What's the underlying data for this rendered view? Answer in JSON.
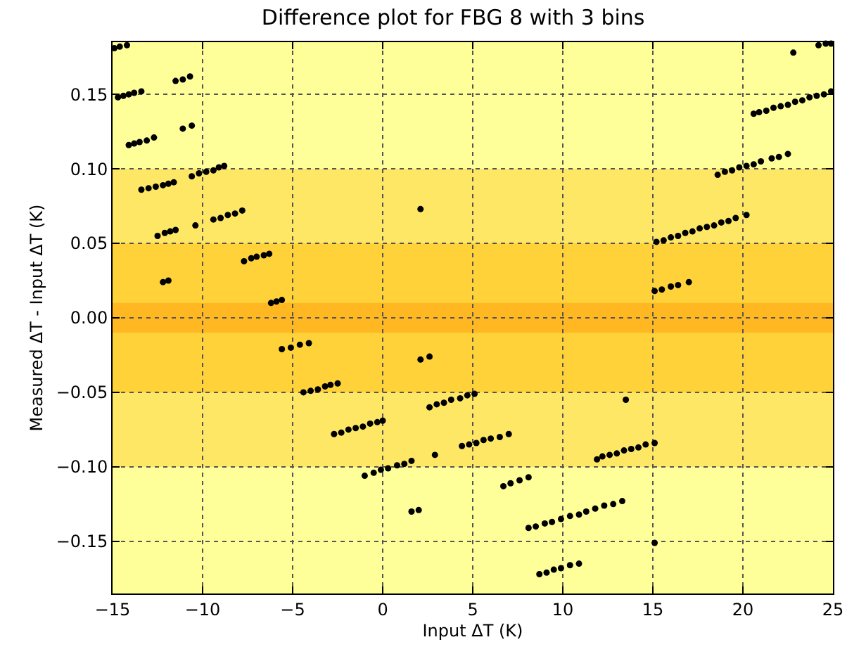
{
  "chart_data": {
    "type": "scatter",
    "title": "Difference plot for FBG 8 with 3 bins",
    "xlabel": "Input ΔT (K)",
    "ylabel": "Measured ΔT - Input ΔT (K)",
    "xlim": [
      -15,
      25
    ],
    "ylim": [
      -0.185,
      0.185
    ],
    "xticks": [
      {
        "value": -15,
        "label": "−15"
      },
      {
        "value": -10,
        "label": "−10"
      },
      {
        "value": -5,
        "label": "−5"
      },
      0,
      5,
      10,
      15,
      20,
      25
    ],
    "yticks": [
      {
        "value": -0.15,
        "label": "−0.15"
      },
      {
        "value": -0.1,
        "label": "−0.10"
      },
      {
        "value": -0.05,
        "label": "−0.05"
      },
      {
        "value": 0,
        "label": "0.00"
      },
      0.05,
      {
        "value": 0.1,
        "label": "0.10"
      },
      0.15
    ],
    "grid": true,
    "marker": "circle",
    "bands": [
      {
        "axis": "y",
        "from": -0.1,
        "to": 0.1,
        "color": "#ffe766"
      },
      {
        "axis": "y",
        "from": -0.05,
        "to": 0.05,
        "color": "#ffd23a"
      },
      {
        "axis": "y",
        "from": -0.01,
        "to": 0.01,
        "color": "#ffb822"
      }
    ],
    "series": [
      {
        "color": "#000000",
        "x": [
          -14.9,
          -14.6,
          -14.2,
          -14.7,
          -14.4,
          -14.1,
          -13.8,
          -13.4,
          -11.5,
          -11.1,
          -10.7,
          -14.1,
          -13.8,
          -13.5,
          -13.1,
          -12.7,
          -11.1,
          -10.6,
          -13.4,
          -13.0,
          -12.6,
          -12.2,
          -11.9,
          -11.6,
          -10.6,
          -10.2,
          -9.8,
          -9.4,
          -9.1,
          -8.8,
          -12.5,
          -12.1,
          -11.8,
          -11.5,
          -10.4,
          -9.4,
          -9.0,
          -8.6,
          -8.2,
          -7.8,
          -12.2,
          -11.9,
          -7.7,
          -7.3,
          -7.0,
          -6.6,
          -6.3,
          -6.2,
          -5.9,
          -5.6,
          2.1,
          24.2,
          24.6,
          24.9,
          22.8,
          20.6,
          20.9,
          21.3,
          21.7,
          22.1,
          22.5,
          22.9,
          23.3,
          23.7,
          24.1,
          24.5,
          24.9,
          18.6,
          19.0,
          19.4,
          19.8,
          20.2,
          20.6,
          21.0,
          21.6,
          22.0,
          22.5,
          15.2,
          15.6,
          16.0,
          16.4,
          16.8,
          17.2,
          17.6,
          18.0,
          18.4,
          18.8,
          19.2,
          19.6,
          20.2,
          15.1,
          15.5,
          16.0,
          16.4,
          17.0,
          -5.6,
          -5.1,
          -4.6,
          -4.1,
          2.1,
          2.6,
          -4.4,
          -4.0,
          -3.6,
          -3.2,
          -2.9,
          -2.5,
          2.6,
          3.0,
          3.4,
          3.8,
          4.3,
          4.7,
          5.1,
          -2.7,
          -2.3,
          -1.9,
          -1.5,
          -1.1,
          -0.7,
          -0.3,
          0.0,
          2.9,
          4.4,
          4.8,
          5.2,
          5.6,
          6.0,
          6.5,
          7.0,
          -1.0,
          -0.5,
          -0.1,
          0.3,
          0.8,
          1.2,
          1.6,
          1.6,
          2.0,
          6.7,
          7.1,
          7.6,
          8.1,
          11.9,
          12.2,
          12.6,
          13.0,
          13.4,
          13.8,
          14.2,
          14.6,
          15.1,
          13.5,
          8.1,
          8.5,
          9.0,
          9.4,
          9.9,
          10.4,
          10.9,
          11.3,
          11.8,
          12.3,
          12.8,
          13.3,
          15.1,
          8.7,
          9.1,
          9.5,
          9.9,
          10.4,
          10.9
        ],
        "values": [
          0.181,
          0.182,
          0.183,
          0.148,
          0.149,
          0.15,
          0.151,
          0.152,
          0.159,
          0.16,
          0.162,
          0.116,
          0.117,
          0.118,
          0.119,
          0.121,
          0.127,
          0.129,
          0.086,
          0.087,
          0.088,
          0.089,
          0.09,
          0.091,
          0.095,
          0.097,
          0.098,
          0.099,
          0.101,
          0.102,
          0.055,
          0.057,
          0.058,
          0.059,
          0.062,
          0.066,
          0.067,
          0.069,
          0.07,
          0.072,
          0.024,
          0.025,
          0.038,
          0.04,
          0.041,
          0.042,
          0.043,
          0.01,
          0.011,
          0.012,
          0.073,
          0.183,
          0.184,
          0.184,
          0.178,
          0.137,
          0.138,
          0.139,
          0.141,
          0.142,
          0.143,
          0.145,
          0.146,
          0.148,
          0.149,
          0.15,
          0.152,
          0.096,
          0.098,
          0.099,
          0.101,
          0.102,
          0.103,
          0.105,
          0.107,
          0.108,
          0.11,
          0.051,
          0.052,
          0.054,
          0.055,
          0.057,
          0.058,
          0.06,
          0.061,
          0.062,
          0.064,
          0.065,
          0.067,
          0.069,
          0.018,
          0.019,
          0.021,
          0.022,
          0.024,
          -0.021,
          -0.02,
          -0.018,
          -0.017,
          -0.028,
          -0.026,
          -0.05,
          -0.049,
          -0.048,
          -0.046,
          -0.045,
          -0.044,
          -0.06,
          -0.058,
          -0.057,
          -0.055,
          -0.054,
          -0.052,
          -0.051,
          -0.078,
          -0.077,
          -0.075,
          -0.074,
          -0.073,
          -0.071,
          -0.07,
          -0.069,
          -0.092,
          -0.086,
          -0.085,
          -0.084,
          -0.082,
          -0.081,
          -0.08,
          -0.078,
          -0.106,
          -0.104,
          -0.102,
          -0.101,
          -0.099,
          -0.098,
          -0.096,
          -0.13,
          -0.129,
          -0.113,
          -0.111,
          -0.109,
          -0.107,
          -0.095,
          -0.093,
          -0.092,
          -0.091,
          -0.089,
          -0.088,
          -0.087,
          -0.085,
          -0.084,
          -0.055,
          -0.141,
          -0.14,
          -0.138,
          -0.137,
          -0.135,
          -0.133,
          -0.132,
          -0.13,
          -0.128,
          -0.126,
          -0.125,
          -0.123,
          -0.151,
          -0.172,
          -0.171,
          -0.169,
          -0.168,
          -0.166,
          -0.165
        ]
      }
    ]
  }
}
